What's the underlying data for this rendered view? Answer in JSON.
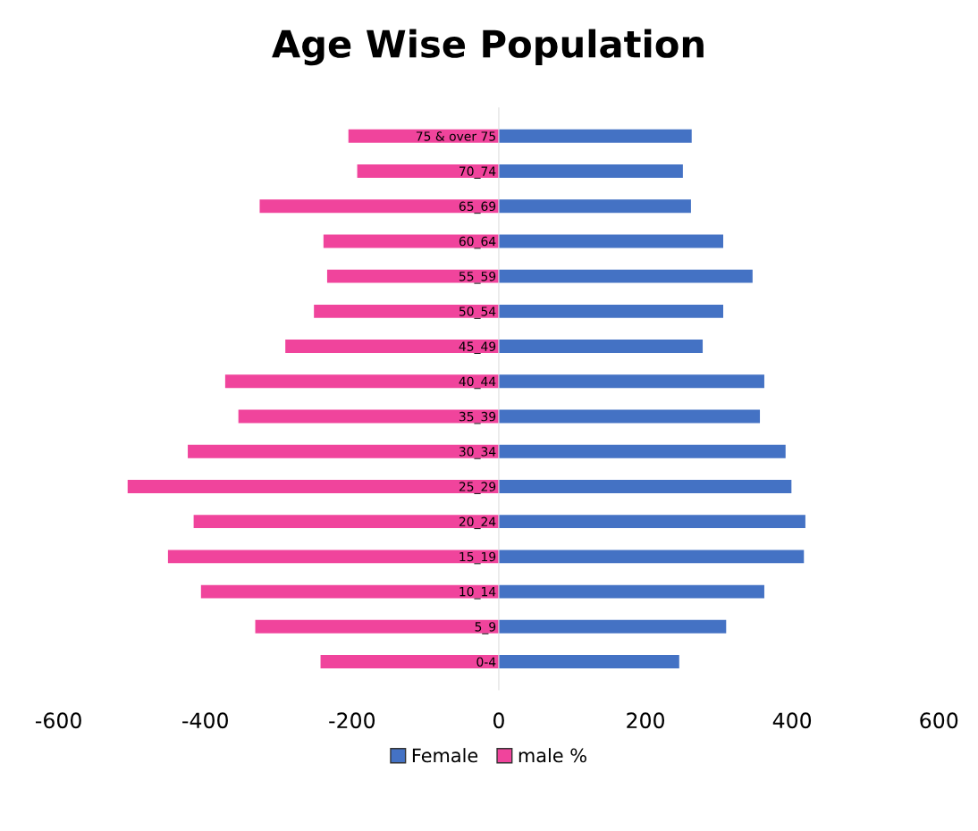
{
  "chart_data": {
    "type": "bar",
    "orientation": "horizontal",
    "title": "Age Wise Population",
    "categories": [
      "75 & over 75",
      "70_74",
      "65_69",
      "60_64",
      "55_59",
      "50_54",
      "45_49",
      "40_44",
      "35_39",
      "30_34",
      "25_29",
      "20_24",
      "15_19",
      "10_14",
      "5_9",
      "0-4"
    ],
    "series": [
      {
        "name": "Female",
        "color": "#4472c4",
        "values": [
          263,
          251,
          262,
          306,
          346,
          306,
          278,
          362,
          356,
          391,
          399,
          418,
          416,
          362,
          310,
          246
        ]
      },
      {
        "name": "male %",
        "color": "#f0449c",
        "values": [
          -205,
          -193,
          -326,
          -239,
          -234,
          -252,
          -291,
          -373,
          -355,
          -424,
          -506,
          -416,
          -451,
          -406,
          -332,
          -243
        ]
      }
    ],
    "xlim": [
      -600,
      600
    ],
    "xticks": [
      -600,
      -400,
      -200,
      0,
      200,
      400,
      600
    ],
    "stacked": true,
    "grid": false,
    "legend": "bottom"
  }
}
